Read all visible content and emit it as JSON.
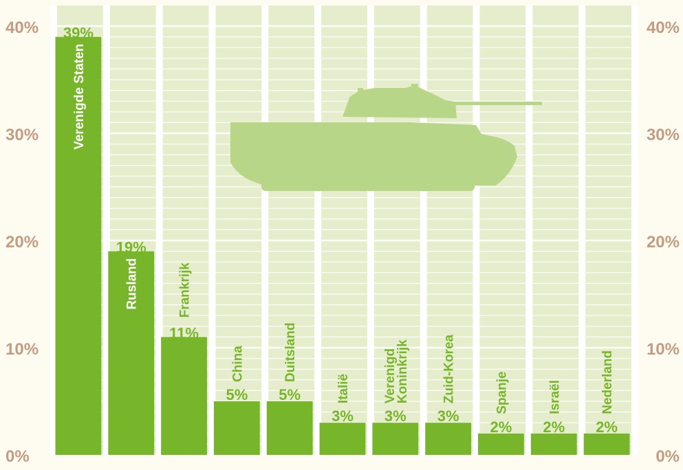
{
  "colors": {
    "background": "#fefcf0",
    "plot_background": "#e6edcc",
    "bar": "#77b52a",
    "tank": "#b8d687",
    "axis_label": "#c49c82",
    "white_label": "#ffffff",
    "green_label": "#77b52a"
  },
  "icons": [
    "tank-silhouette"
  ],
  "chart_data": {
    "type": "bar",
    "categories": [
      "Verenigde Staten",
      "Rusland",
      "Frankrijk",
      "China",
      "Duitsland",
      "Italië",
      "Verenigd\nKoninkrijk",
      "Zuid-Korea",
      "Spanje",
      "Israël",
      "Nederland"
    ],
    "values": [
      39,
      19,
      11,
      5,
      5,
      3,
      3,
      3,
      2,
      2,
      2
    ],
    "value_labels": [
      "39%",
      "19%",
      "11%",
      "5%",
      "5%",
      "3%",
      "3%",
      "3%",
      "2%",
      "2%",
      "2%"
    ],
    "label_inside_bar": [
      true,
      true,
      false,
      false,
      false,
      false,
      false,
      false,
      false,
      false,
      false
    ],
    "ylim": [
      0,
      40
    ],
    "yticks": [
      0,
      10,
      20,
      30,
      40
    ],
    "ytick_labels": [
      "0%",
      "10%",
      "20%",
      "30%",
      "40%"
    ],
    "title": "",
    "xlabel": "",
    "ylabel": "",
    "grid": true,
    "legend": "none"
  }
}
